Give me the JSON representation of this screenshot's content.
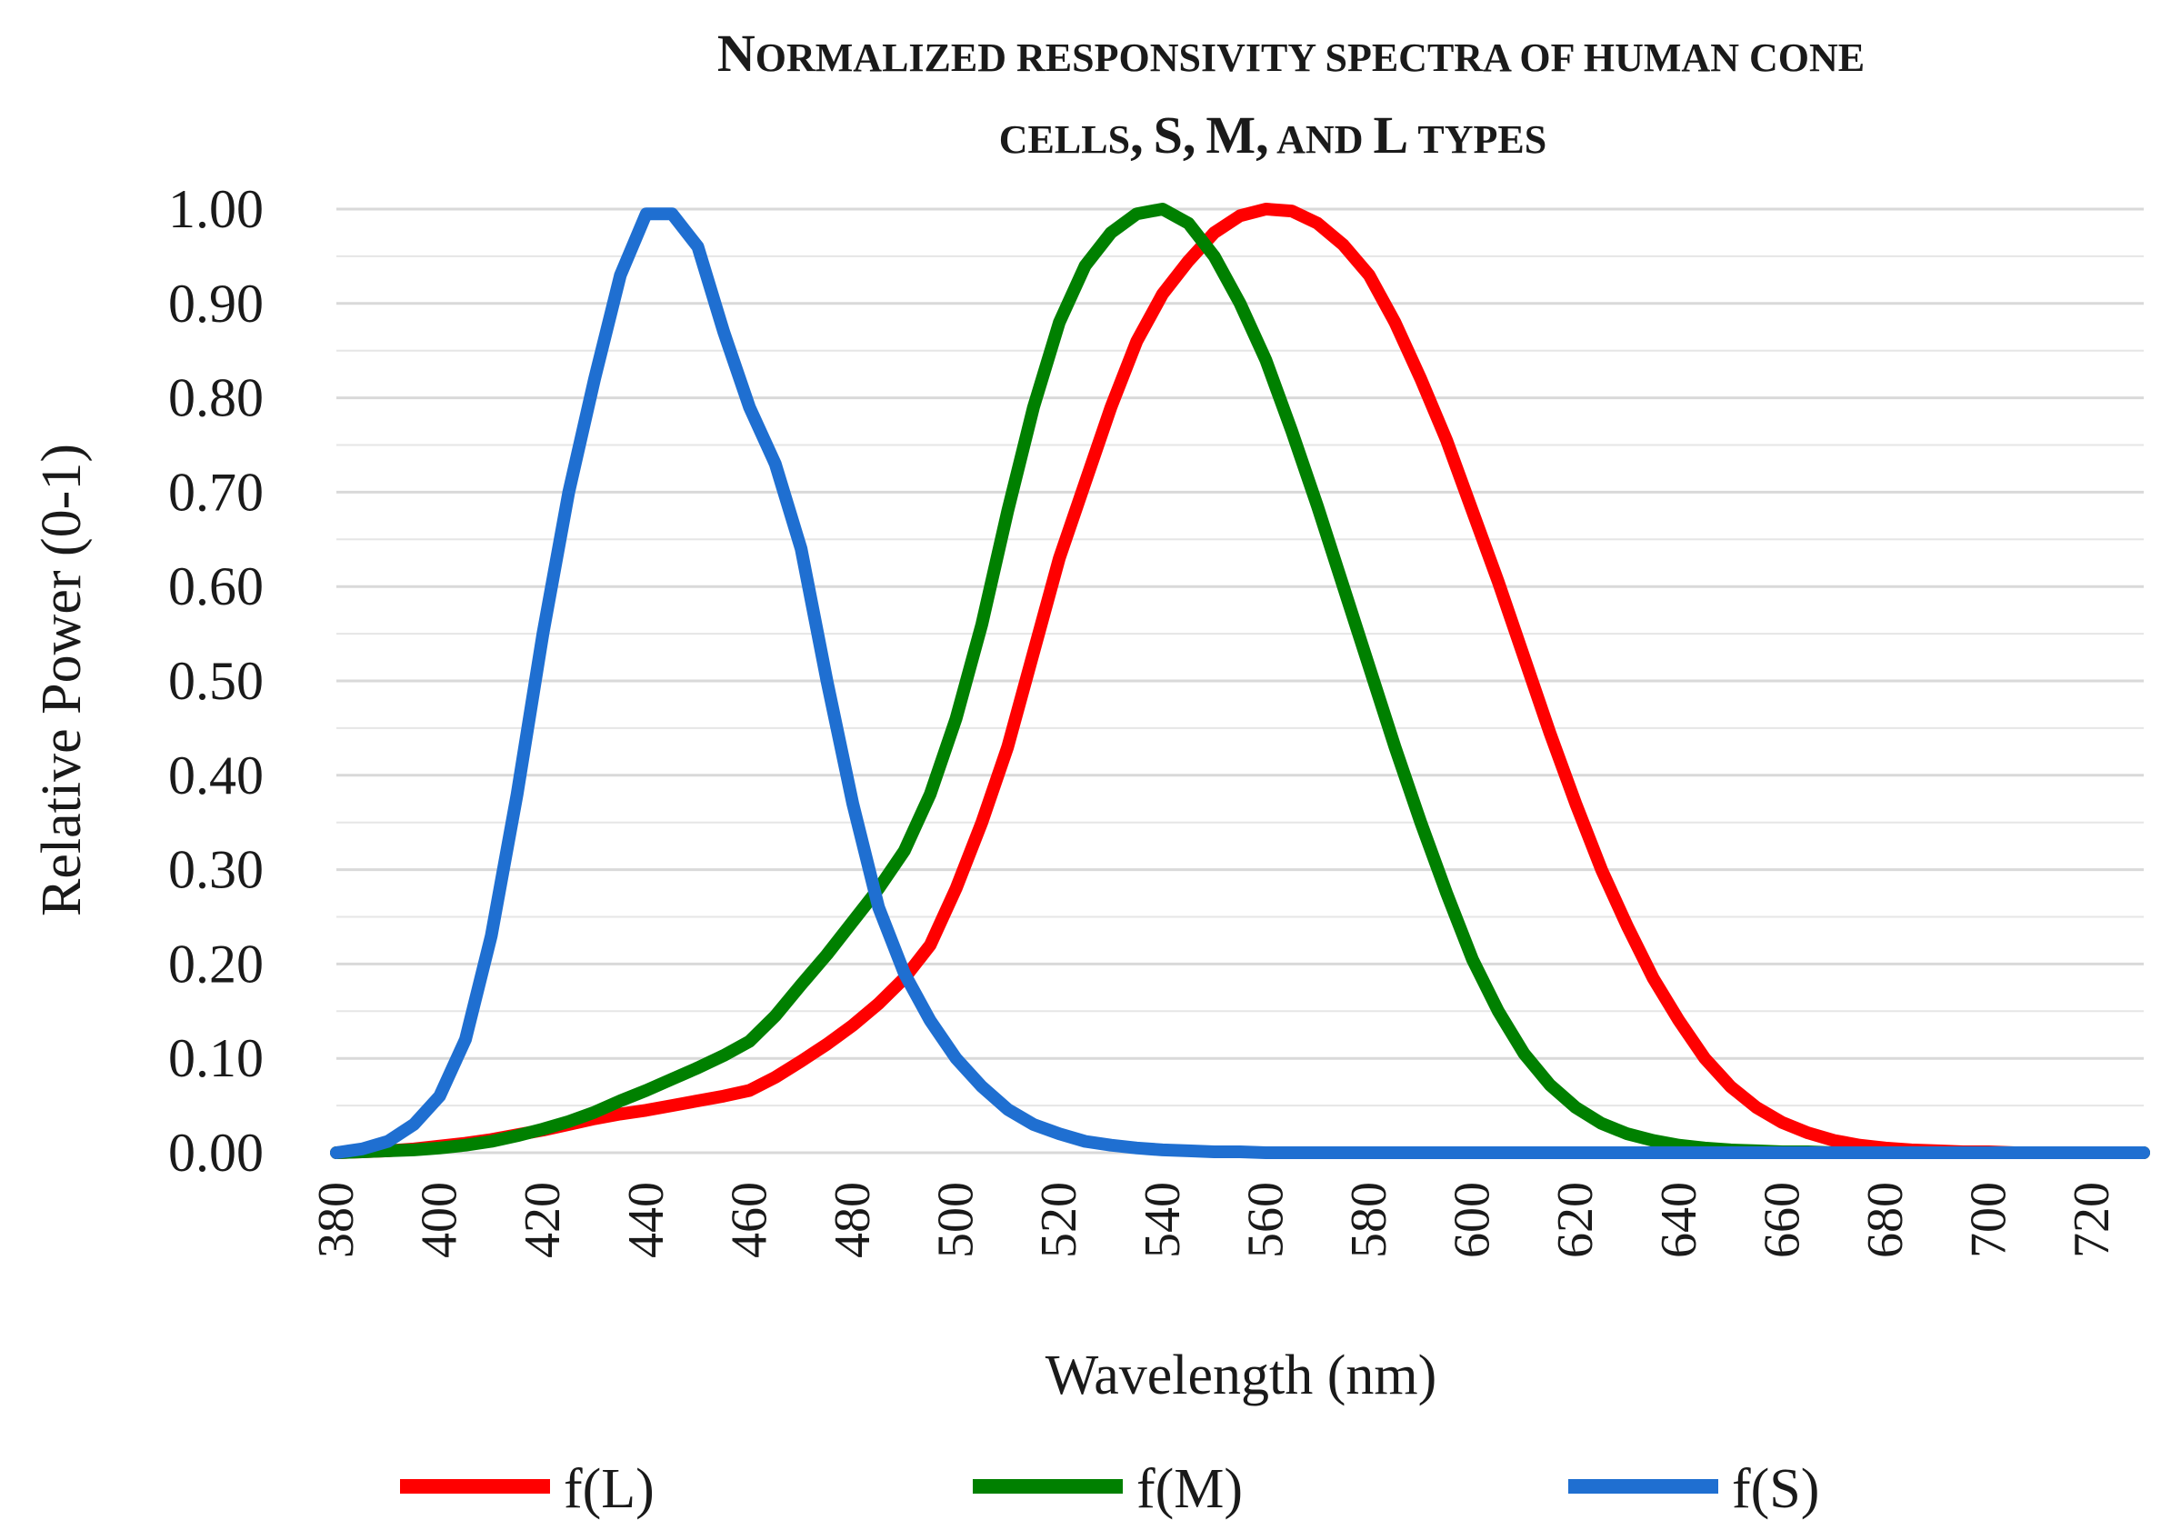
{
  "chart_data": {
    "type": "line",
    "title_line1": "Normalized responsivity spectra of human cone",
    "title_line2": "cells, S, M, and L types",
    "xlabel": "Wavelength (nm)",
    "ylabel": "Relative Power (0-1)",
    "xlim": [
      380,
      730
    ],
    "ylim": [
      0,
      1
    ],
    "x_ticks": [
      "380",
      "400",
      "420",
      "440",
      "460",
      "480",
      "500",
      "520",
      "540",
      "560",
      "580",
      "600",
      "620",
      "640",
      "660",
      "680",
      "700",
      "720"
    ],
    "y_ticks": [
      "0.00",
      "0.10",
      "0.20",
      "0.30",
      "0.40",
      "0.50",
      "0.60",
      "0.70",
      "0.80",
      "0.90",
      "1.00"
    ],
    "x": [
      380,
      385,
      390,
      395,
      400,
      405,
      410,
      415,
      420,
      425,
      430,
      435,
      440,
      445,
      450,
      455,
      460,
      465,
      470,
      475,
      480,
      485,
      490,
      495,
      500,
      505,
      510,
      515,
      520,
      525,
      530,
      535,
      540,
      545,
      550,
      555,
      560,
      565,
      570,
      575,
      580,
      585,
      590,
      595,
      600,
      605,
      610,
      615,
      620,
      625,
      630,
      635,
      640,
      645,
      650,
      655,
      660,
      665,
      670,
      675,
      680,
      685,
      690,
      695,
      700,
      705,
      710,
      715,
      720,
      725,
      730
    ],
    "series": [
      {
        "name": "f(L)",
        "color": "#ff0000",
        "values": [
          0.0,
          0.001,
          0.002,
          0.004,
          0.007,
          0.01,
          0.014,
          0.019,
          0.024,
          0.03,
          0.036,
          0.041,
          0.045,
          0.05,
          0.055,
          0.06,
          0.066,
          0.08,
          0.097,
          0.115,
          0.135,
          0.158,
          0.185,
          0.22,
          0.28,
          0.35,
          0.43,
          0.53,
          0.63,
          0.71,
          0.79,
          0.86,
          0.91,
          0.945,
          0.975,
          0.993,
          1.0,
          0.998,
          0.985,
          0.962,
          0.93,
          0.88,
          0.82,
          0.755,
          0.68,
          0.605,
          0.525,
          0.445,
          0.37,
          0.3,
          0.24,
          0.185,
          0.14,
          0.1,
          0.07,
          0.048,
          0.032,
          0.021,
          0.013,
          0.008,
          0.005,
          0.003,
          0.002,
          0.001,
          0.001,
          0.0,
          0.0,
          0.0,
          0.0,
          0.0,
          0.0
        ]
      },
      {
        "name": "f(M)",
        "color": "#008000",
        "values": [
          0.0,
          0.001,
          0.002,
          0.003,
          0.005,
          0.008,
          0.012,
          0.018,
          0.025,
          0.033,
          0.043,
          0.055,
          0.066,
          0.078,
          0.09,
          0.103,
          0.118,
          0.145,
          0.178,
          0.21,
          0.245,
          0.28,
          0.32,
          0.38,
          0.46,
          0.56,
          0.68,
          0.79,
          0.88,
          0.94,
          0.975,
          0.995,
          1.0,
          0.985,
          0.95,
          0.9,
          0.84,
          0.765,
          0.685,
          0.6,
          0.515,
          0.43,
          0.35,
          0.275,
          0.205,
          0.15,
          0.105,
          0.072,
          0.048,
          0.031,
          0.02,
          0.013,
          0.008,
          0.005,
          0.003,
          0.002,
          0.001,
          0.001,
          0.0,
          0.0,
          0.0,
          0.0,
          0.0,
          0.0,
          0.0,
          0.0,
          0.0,
          0.0,
          0.0,
          0.0,
          0.0
        ]
      },
      {
        "name": "f(S)",
        "color": "#1f6fd1",
        "values": [
          0.0,
          0.004,
          0.012,
          0.03,
          0.06,
          0.12,
          0.23,
          0.38,
          0.55,
          0.7,
          0.82,
          0.93,
          0.995,
          0.995,
          0.96,
          0.87,
          0.79,
          0.73,
          0.64,
          0.5,
          0.37,
          0.26,
          0.19,
          0.14,
          0.1,
          0.07,
          0.046,
          0.03,
          0.02,
          0.012,
          0.008,
          0.005,
          0.003,
          0.002,
          0.001,
          0.001,
          0.0,
          0.0,
          0.0,
          0.0,
          0.0,
          0.0,
          0.0,
          0.0,
          0.0,
          0.0,
          0.0,
          0.0,
          0.0,
          0.0,
          0.0,
          0.0,
          0.0,
          0.0,
          0.0,
          0.0,
          0.0,
          0.0,
          0.0,
          0.0,
          0.0,
          0.0,
          0.0,
          0.0,
          0.0,
          0.0,
          0.0,
          0.0,
          0.0,
          0.0,
          0.0
        ]
      }
    ],
    "legend_position": "bottom",
    "grid": true
  }
}
